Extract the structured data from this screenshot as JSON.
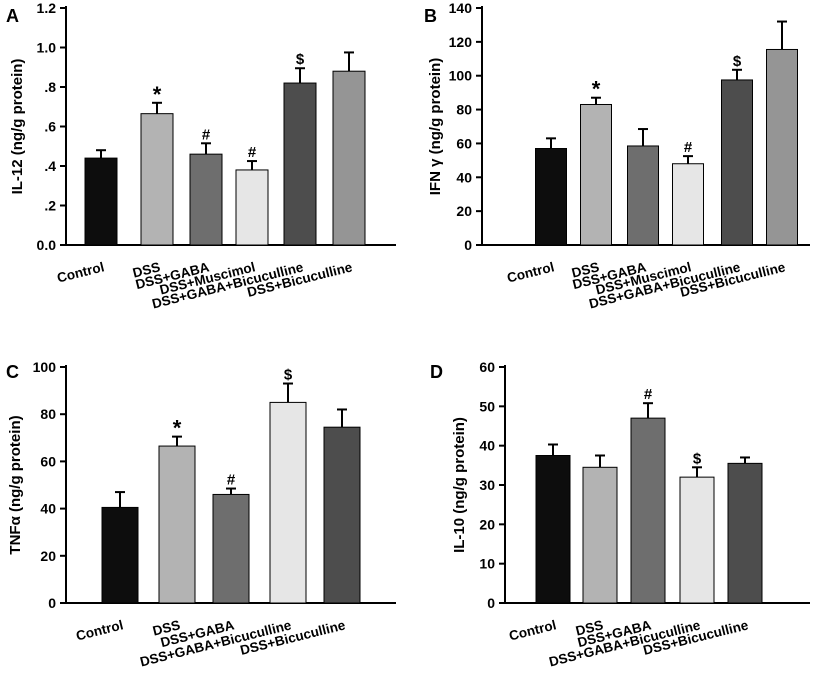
{
  "chart_data": [
    {
      "panel": "A",
      "type": "bar",
      "ylabel": "IL-12 (ng/g protein)",
      "ylim": [
        0,
        1.2
      ],
      "yticks": [
        "0.0",
        ".2",
        ".4",
        ".6",
        ".8",
        "1.0",
        "1.2"
      ],
      "categories": [
        "Control",
        "DSS",
        "DSS+GABA",
        "DSS+Muscimol",
        "DSS+GABA+Bicuculline",
        "DSS+Bicuculline"
      ],
      "values": [
        0.44,
        0.665,
        0.46,
        0.38,
        0.82,
        0.88
      ],
      "errors": [
        0.04,
        0.055,
        0.055,
        0.045,
        0.075,
        0.095
      ],
      "annotations": [
        "",
        "*",
        "#",
        "#",
        "$",
        ""
      ],
      "colors": [
        "#0d0d0d",
        "#b3b3b3",
        "#6e6e6e",
        "#e6e6e6",
        "#4d4d4d",
        "#959595"
      ]
    },
    {
      "panel": "B",
      "type": "bar",
      "ylabel": "IFN γ (ng/g protein)",
      "ylim": [
        0,
        140
      ],
      "yticks": [
        "0",
        "20",
        "40",
        "60",
        "80",
        "100",
        "120",
        "140"
      ],
      "categories": [
        "Control",
        "DSS",
        "DSS+GABA",
        "DSS+Muscimol",
        "DSS+GABA+Bicuculline",
        "DSS+Bicuculline"
      ],
      "values": [
        57,
        83,
        58.5,
        48,
        97.5,
        115.5
      ],
      "errors": [
        6,
        4,
        10,
        4.5,
        6,
        16.5
      ],
      "annotations": [
        "",
        "*",
        "",
        "#",
        "$",
        ""
      ],
      "colors": [
        "#0d0d0d",
        "#b3b3b3",
        "#6e6e6e",
        "#e6e6e6",
        "#4d4d4d",
        "#959595"
      ]
    },
    {
      "panel": "C",
      "type": "bar",
      "ylabel": "TNFα (ng/g protein)",
      "ylim": [
        0,
        100
      ],
      "yticks": [
        "0",
        "20",
        "40",
        "60",
        "80",
        "100"
      ],
      "categories": [
        "Control",
        "DSS",
        "DSS+GABA",
        "DSS+GABA+Bicuculline",
        "DSS+Bicuculline"
      ],
      "values": [
        40.5,
        66.5,
        46,
        85,
        74.5
      ],
      "errors": [
        6.5,
        4,
        2.5,
        8,
        7.5
      ],
      "annotations": [
        "",
        "*",
        "#",
        "$",
        ""
      ],
      "colors": [
        "#0d0d0d",
        "#b3b3b3",
        "#6e6e6e",
        "#e6e6e6",
        "#4d4d4d"
      ]
    },
    {
      "panel": "D",
      "type": "bar",
      "ylabel": "IL-10 (ng/g protein)",
      "ylim": [
        0,
        60
      ],
      "yticks": [
        "0",
        "10",
        "20",
        "30",
        "40",
        "50",
        "60"
      ],
      "categories": [
        "Control",
        "DSS",
        "DSS+GABA",
        "DSS+GABA+Bicuculline",
        "DSS+Bicuculline"
      ],
      "values": [
        37.5,
        34.5,
        47,
        32,
        35.5
      ],
      "errors": [
        2.8,
        3,
        3.8,
        2.5,
        1.5
      ],
      "annotations": [
        "",
        "",
        "#",
        "$",
        ""
      ],
      "colors": [
        "#0d0d0d",
        "#b3b3b3",
        "#6e6e6e",
        "#e6e6e6",
        "#4d4d4d"
      ]
    }
  ]
}
